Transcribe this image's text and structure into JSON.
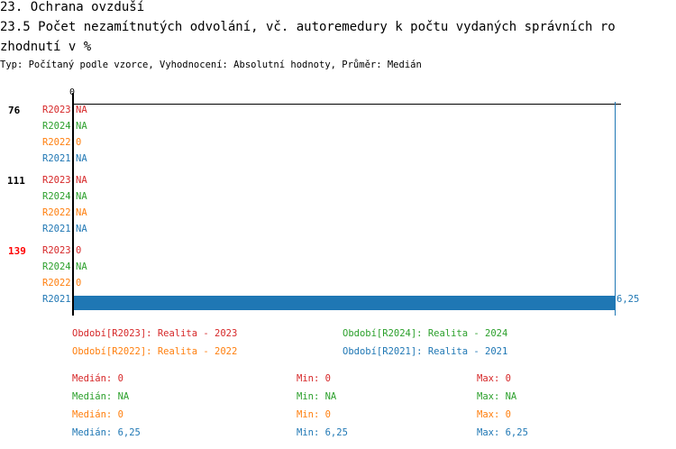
{
  "header": {
    "section_title": "23. Ochrana ovzduší",
    "chart_title_line1": "23.5 Počet nezamítnutých odvolání, vč. autoremedury k počtu vydaných správních ro",
    "chart_title_line2": "zhodnutí v %",
    "subtitle": "Typ: Počítaný podle vzorce, Vyhodnocení: Absolutní hodnoty, Průměr: Medián"
  },
  "colors": {
    "R2023": "#d62728",
    "R2024": "#2ca02c",
    "R2022": "#ff7f0e",
    "R2021": "#1f77b4",
    "highlight": "#ff0000"
  },
  "chart_data": {
    "type": "bar",
    "orientation": "horizontal",
    "x_tick_labels": [
      "0"
    ],
    "xlim": [
      0,
      6.25
    ],
    "groups": [
      {
        "label": "76",
        "highlight": false,
        "rows": [
          {
            "period": "R2023",
            "value": null,
            "text": "NA"
          },
          {
            "period": "R2024",
            "value": null,
            "text": "NA"
          },
          {
            "period": "R2022",
            "value": 0,
            "text": "0"
          },
          {
            "period": "R2021",
            "value": null,
            "text": "NA"
          }
        ]
      },
      {
        "label": "111",
        "highlight": false,
        "rows": [
          {
            "period": "R2023",
            "value": null,
            "text": "NA"
          },
          {
            "period": "R2024",
            "value": null,
            "text": "NA"
          },
          {
            "period": "R2022",
            "value": null,
            "text": "NA"
          },
          {
            "period": "R2021",
            "value": null,
            "text": "NA"
          }
        ]
      },
      {
        "label": "139",
        "highlight": true,
        "rows": [
          {
            "period": "R2023",
            "value": 0,
            "text": "0"
          },
          {
            "period": "R2024",
            "value": null,
            "text": "NA"
          },
          {
            "period": "R2022",
            "value": 0,
            "text": "0"
          },
          {
            "period": "R2021",
            "value": 6.25,
            "text": "6,25"
          }
        ]
      }
    ],
    "legend": [
      {
        "period": "R2023",
        "text": "Období[R2023]: Realita - 2023"
      },
      {
        "period": "R2024",
        "text": "Období[R2024]: Realita - 2024"
      },
      {
        "period": "R2022",
        "text": "Období[R2022]: Realita - 2022"
      },
      {
        "period": "R2021",
        "text": "Období[R2021]: Realita - 2021"
      }
    ],
    "stats": [
      {
        "period": "R2023",
        "median": "Medián: 0",
        "min": "Min: 0",
        "max": "Max: 0"
      },
      {
        "period": "R2024",
        "median": "Medián: NA",
        "min": "Min: NA",
        "max": "Max: NA"
      },
      {
        "period": "R2022",
        "median": "Medián: 0",
        "min": "Min: 0",
        "max": "Max: 0"
      },
      {
        "period": "R2021",
        "median": "Medián: 6,25",
        "min": "Min: 6,25",
        "max": "Max: 6,25"
      }
    ]
  }
}
